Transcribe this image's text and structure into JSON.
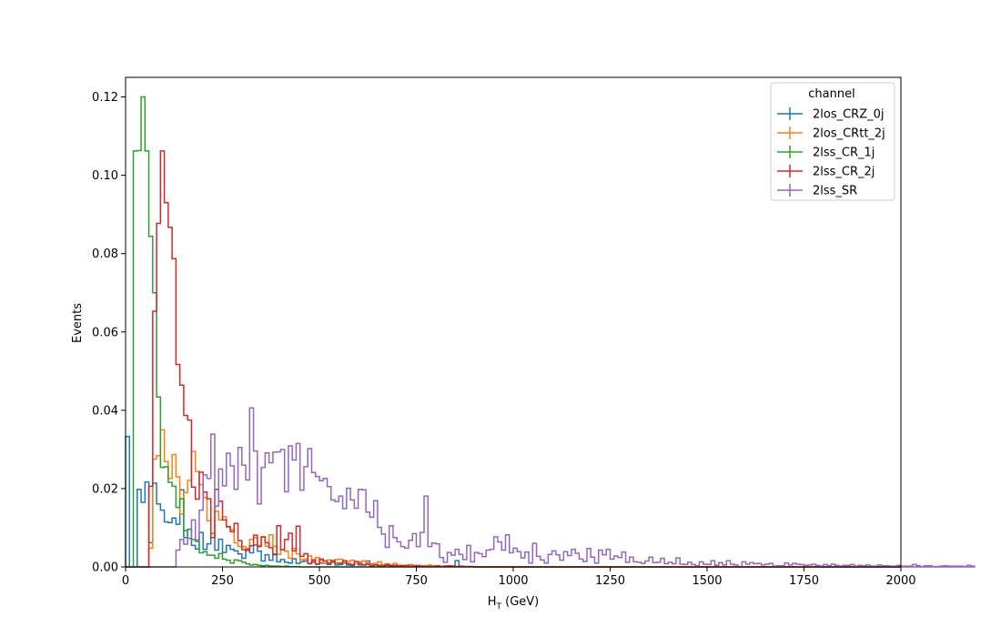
{
  "chart_data": {
    "type": "histogram",
    "xlabel_main": "H",
    "xlabel_sub": "T",
    "xlabel_rest": " (GeV)",
    "ylabel": "Events",
    "xlim": [
      0,
      2000
    ],
    "ylim": [
      0,
      0.125
    ],
    "xticks": [
      0,
      250,
      500,
      750,
      1000,
      1250,
      1500,
      1750,
      2000
    ],
    "yticks": [
      0.0,
      0.02,
      0.04,
      0.06,
      0.08,
      0.1,
      0.12
    ],
    "xtick_labels": [
      "0",
      "250",
      "500",
      "750",
      "1000",
      "1250",
      "1500",
      "1750",
      "2000"
    ],
    "ytick_labels": [
      "0.00",
      "0.02",
      "0.04",
      "0.06",
      "0.08",
      "0.10",
      "0.12"
    ],
    "bin_width": 10,
    "grid": false,
    "legend": {
      "title": "channel",
      "placement": "top-right"
    },
    "series": [
      {
        "name": "2los_CRZ_0j",
        "color": "#1f77b4",
        "values": [
          0.0333,
          0,
          0,
          0.0198,
          0.0165,
          0.0217,
          0.0062,
          0.0214,
          0.0161,
          0.0145,
          0.0115,
          0.0113,
          0.0125,
          0.0109,
          0.0197,
          0.0075,
          0.0096,
          0.0055,
          0.0046,
          0.0088,
          0.0045,
          0.0059,
          0.0086,
          0.0043,
          0.0071,
          0.0037,
          0.0055,
          0.0045,
          0.0041,
          0.0033,
          0.0022,
          0.0045,
          0.0036,
          0.0056,
          0.004,
          0.0015,
          0.0031,
          0.0017,
          0.0033,
          0.0013,
          0.0019,
          0.0012,
          0.001,
          0.0021,
          0.0009,
          0.0013,
          0.0015,
          0.0008,
          0.0012,
          0.0007,
          0.001,
          0.0009,
          0.0006,
          0.0014,
          0.0005,
          0.0006,
          0.001,
          0.0005,
          0.0004,
          0.0008,
          0.0005,
          0.0005,
          0.0015,
          0.0003,
          0.0005,
          0.0002,
          0.0004,
          0.0004,
          0.0005,
          0.0003,
          0.0003,
          0.0002,
          0.0003,
          0.0002,
          0.0004,
          0.0002,
          0.0001,
          0.0002,
          0.0002,
          0.0001,
          0.0002,
          0.0001,
          0.0001,
          0.0001,
          0.0002,
          0.0016,
          0.0001,
          0.0001,
          0.0001,
          0.0001
        ]
      },
      {
        "name": "2los_CRtt_2j",
        "color": "#ff7f0e",
        "values": [
          0,
          0,
          0,
          0,
          0,
          0,
          0.0048,
          0.0275,
          0.0284,
          0.035,
          0.0269,
          0.0226,
          0.0287,
          0.023,
          0.0135,
          0.019,
          0.0221,
          0.0295,
          0.0244,
          0.021,
          0.0177,
          0.0118,
          0.0085,
          0.0142,
          0.012,
          0.0128,
          0.0102,
          0.0095,
          0.0062,
          0.0052,
          0.0052,
          0.0047,
          0.007,
          0.0075,
          0.0055,
          0.0076,
          0.0053,
          0.0082,
          0.0053,
          0.0032,
          0.0044,
          0.004,
          0.0022,
          0.0047,
          0.0033,
          0.0018,
          0.002,
          0.0028,
          0.0015,
          0.0024,
          0.0016,
          0.0009,
          0.0018,
          0.0011,
          0.0019,
          0.002,
          0.0012,
          0.0014,
          0.0017,
          0.0008,
          0.0013,
          0.0015,
          0.001,
          0.0008,
          0.0009,
          0.0013,
          0.0006,
          0.0008,
          0.0004,
          0.0009,
          0.0005,
          0.0004,
          0.0003,
          0.0006,
          0.0003,
          0.0004,
          0.0002,
          0.0003,
          0.0005,
          0.0003,
          0.0002,
          0.0002,
          0.0003,
          0.0001,
          0.0002,
          0.0001,
          0.0001,
          0.0001,
          0.0001,
          0.0001
        ]
      },
      {
        "name": "2lss_CR_1j",
        "color": "#2ca02c",
        "values": [
          0,
          0,
          0.1062,
          0.1063,
          0.12,
          0.1062,
          0.0844,
          0.07,
          0.0434,
          0.0254,
          0.0256,
          0.0216,
          0.0206,
          0.0152,
          0.0174,
          0.0093,
          0.0073,
          0.007,
          0.0065,
          0.0036,
          0.0039,
          0.003,
          0.003,
          0.0022,
          0.0034,
          0.002,
          0.0017,
          0.001,
          0.0018,
          0.0016,
          0.0012,
          0.0008,
          0.0005,
          0.0006,
          0.0004,
          0.0003,
          0.0004,
          0.0002,
          0.0002,
          0.0002,
          0.0001,
          0.0002,
          0.0001,
          0.0001,
          0.0001
        ]
      },
      {
        "name": "2lss_CR_2j",
        "color": "#d62728",
        "values": [
          0,
          0,
          0,
          0,
          0,
          0,
          0.0206,
          0.0653,
          0.0877,
          0.1062,
          0.093,
          0.0867,
          0.0787,
          0.0517,
          0.0464,
          0.0387,
          0.0375,
          0.0204,
          0.0173,
          0.0242,
          0.0191,
          0.0174,
          0.0075,
          0.0198,
          0.0168,
          0.012,
          0.0103,
          0.009,
          0.0111,
          0.0067,
          0.0044,
          0.0042,
          0.0054,
          0.0081,
          0.0052,
          0.0077,
          0.0062,
          0.0049,
          0.0031,
          0.0105,
          0.0044,
          0.007,
          0.0086,
          0.0041,
          0.0104,
          0.0027,
          0.0034,
          0.0009,
          0.0018,
          0.0007,
          0.002,
          0.0015,
          0.001,
          0.0016,
          0.001,
          0.001,
          0.0016,
          0.0008,
          0.0006,
          0.0014,
          0.0009,
          0.0005,
          0.0007,
          0.0004,
          0.0005,
          0.0004,
          0.0002,
          0.0006,
          0.0003,
          0.0004,
          0.0002,
          0.0003,
          0.0004,
          0.0001,
          0.0002,
          0.0003,
          0.0002,
          0.0001,
          0.0001,
          0.0001,
          0.0003,
          0.0001,
          0.0001,
          0.0003,
          0.0002,
          0.0001,
          0.0002,
          0.0001,
          0.0001,
          0.0001
        ]
      },
      {
        "name": "2lss_SR",
        "color": "#9467bd",
        "values": [
          0,
          0,
          0,
          0,
          0,
          0,
          0,
          0,
          0,
          0,
          0,
          0,
          0,
          0.0043,
          0.007,
          0.0058,
          0.0073,
          0.012,
          0.0069,
          0.0145,
          0.0235,
          0.0226,
          0.0339,
          0.0155,
          0.025,
          0.0207,
          0.029,
          0.0258,
          0.0198,
          0.0305,
          0.026,
          0.0222,
          0.0406,
          0.0296,
          0.0161,
          0.0254,
          0.0291,
          0.0266,
          0.0293,
          0.0294,
          0.03,
          0.0192,
          0.0309,
          0.0273,
          0.0315,
          0.0196,
          0.0256,
          0.0302,
          0.0241,
          0.0231,
          0.022,
          0.0226,
          0.0205,
          0.0171,
          0.0167,
          0.0181,
          0.0149,
          0.0201,
          0.0171,
          0.015,
          0.0198,
          0.0197,
          0.014,
          0.0127,
          0.0169,
          0.0101,
          0.0084,
          0.005,
          0.0105,
          0.0075,
          0.0064,
          0.0052,
          0.0048,
          0.0068,
          0.0085,
          0.0052,
          0.0088,
          0.0181,
          0.0052,
          0.0061,
          0.0059,
          0.0024,
          0.0012,
          0.0037,
          0.003,
          0.0045,
          0.0032,
          0.0019,
          0.0055,
          0.0013,
          0.0037,
          0.0034,
          0.0026,
          0.0043,
          0.0045,
          0.0077,
          0.0064,
          0.0043,
          0.0082,
          0.0036,
          0.0048,
          0.0039,
          0.0023,
          0.0038,
          0.001,
          0.006,
          0.0027,
          0.0018,
          0.001,
          0.0032,
          0.0041,
          0.0031,
          0.0017,
          0.0039,
          0.0029,
          0.0045,
          0.0035,
          0.002,
          0.0014,
          0.0047,
          0.0025,
          0.001,
          0.0043,
          0.0031,
          0.0045,
          0.002,
          0.0028,
          0.0024,
          0.0038,
          0.0012,
          0.0025,
          0.0013,
          0.0012,
          0.0009,
          0.0015,
          0.0025,
          0.0011,
          0.0012,
          0.0022,
          0.0008,
          0.0012,
          0.0008,
          0.0023,
          0.0007,
          0.0006,
          0.0012,
          0.0006,
          0.0003,
          0.0013,
          0.0007,
          0.0006,
          0.0016,
          0.0004,
          0.0011,
          0.0005,
          0.0016,
          0.0007,
          0.0005,
          0.0001,
          0.0013,
          0.0007,
          0.0011,
          0.0008,
          0.0009,
          0.0005,
          0.0007,
          0.0009,
          0.0002,
          0.0003,
          0.0003,
          0.001,
          0.0005,
          0.0009,
          0.0007,
          0.0006,
          0.0004,
          0.0005,
          0.0007,
          0.0004,
          0.0002,
          0.0006,
          0.0003,
          0.0007,
          0.0004,
          0.0002,
          0.0004,
          0.0004,
          0.0006,
          0.0002,
          0.0004,
          0.0003,
          0.0005,
          0.0002,
          0.0002,
          0.0005,
          0.0003,
          0.0003,
          0.0002,
          0.0002,
          0.0004,
          0.0002,
          0.0002,
          0.0002,
          0.0006,
          0.0003,
          0.0001,
          0.0003,
          0.0003,
          0.0001,
          0.0001,
          0.0002,
          0.0003,
          0.0002,
          0.0002,
          0.0002,
          0.0002,
          0.0001,
          0.0004,
          0.0002
        ]
      }
    ]
  }
}
